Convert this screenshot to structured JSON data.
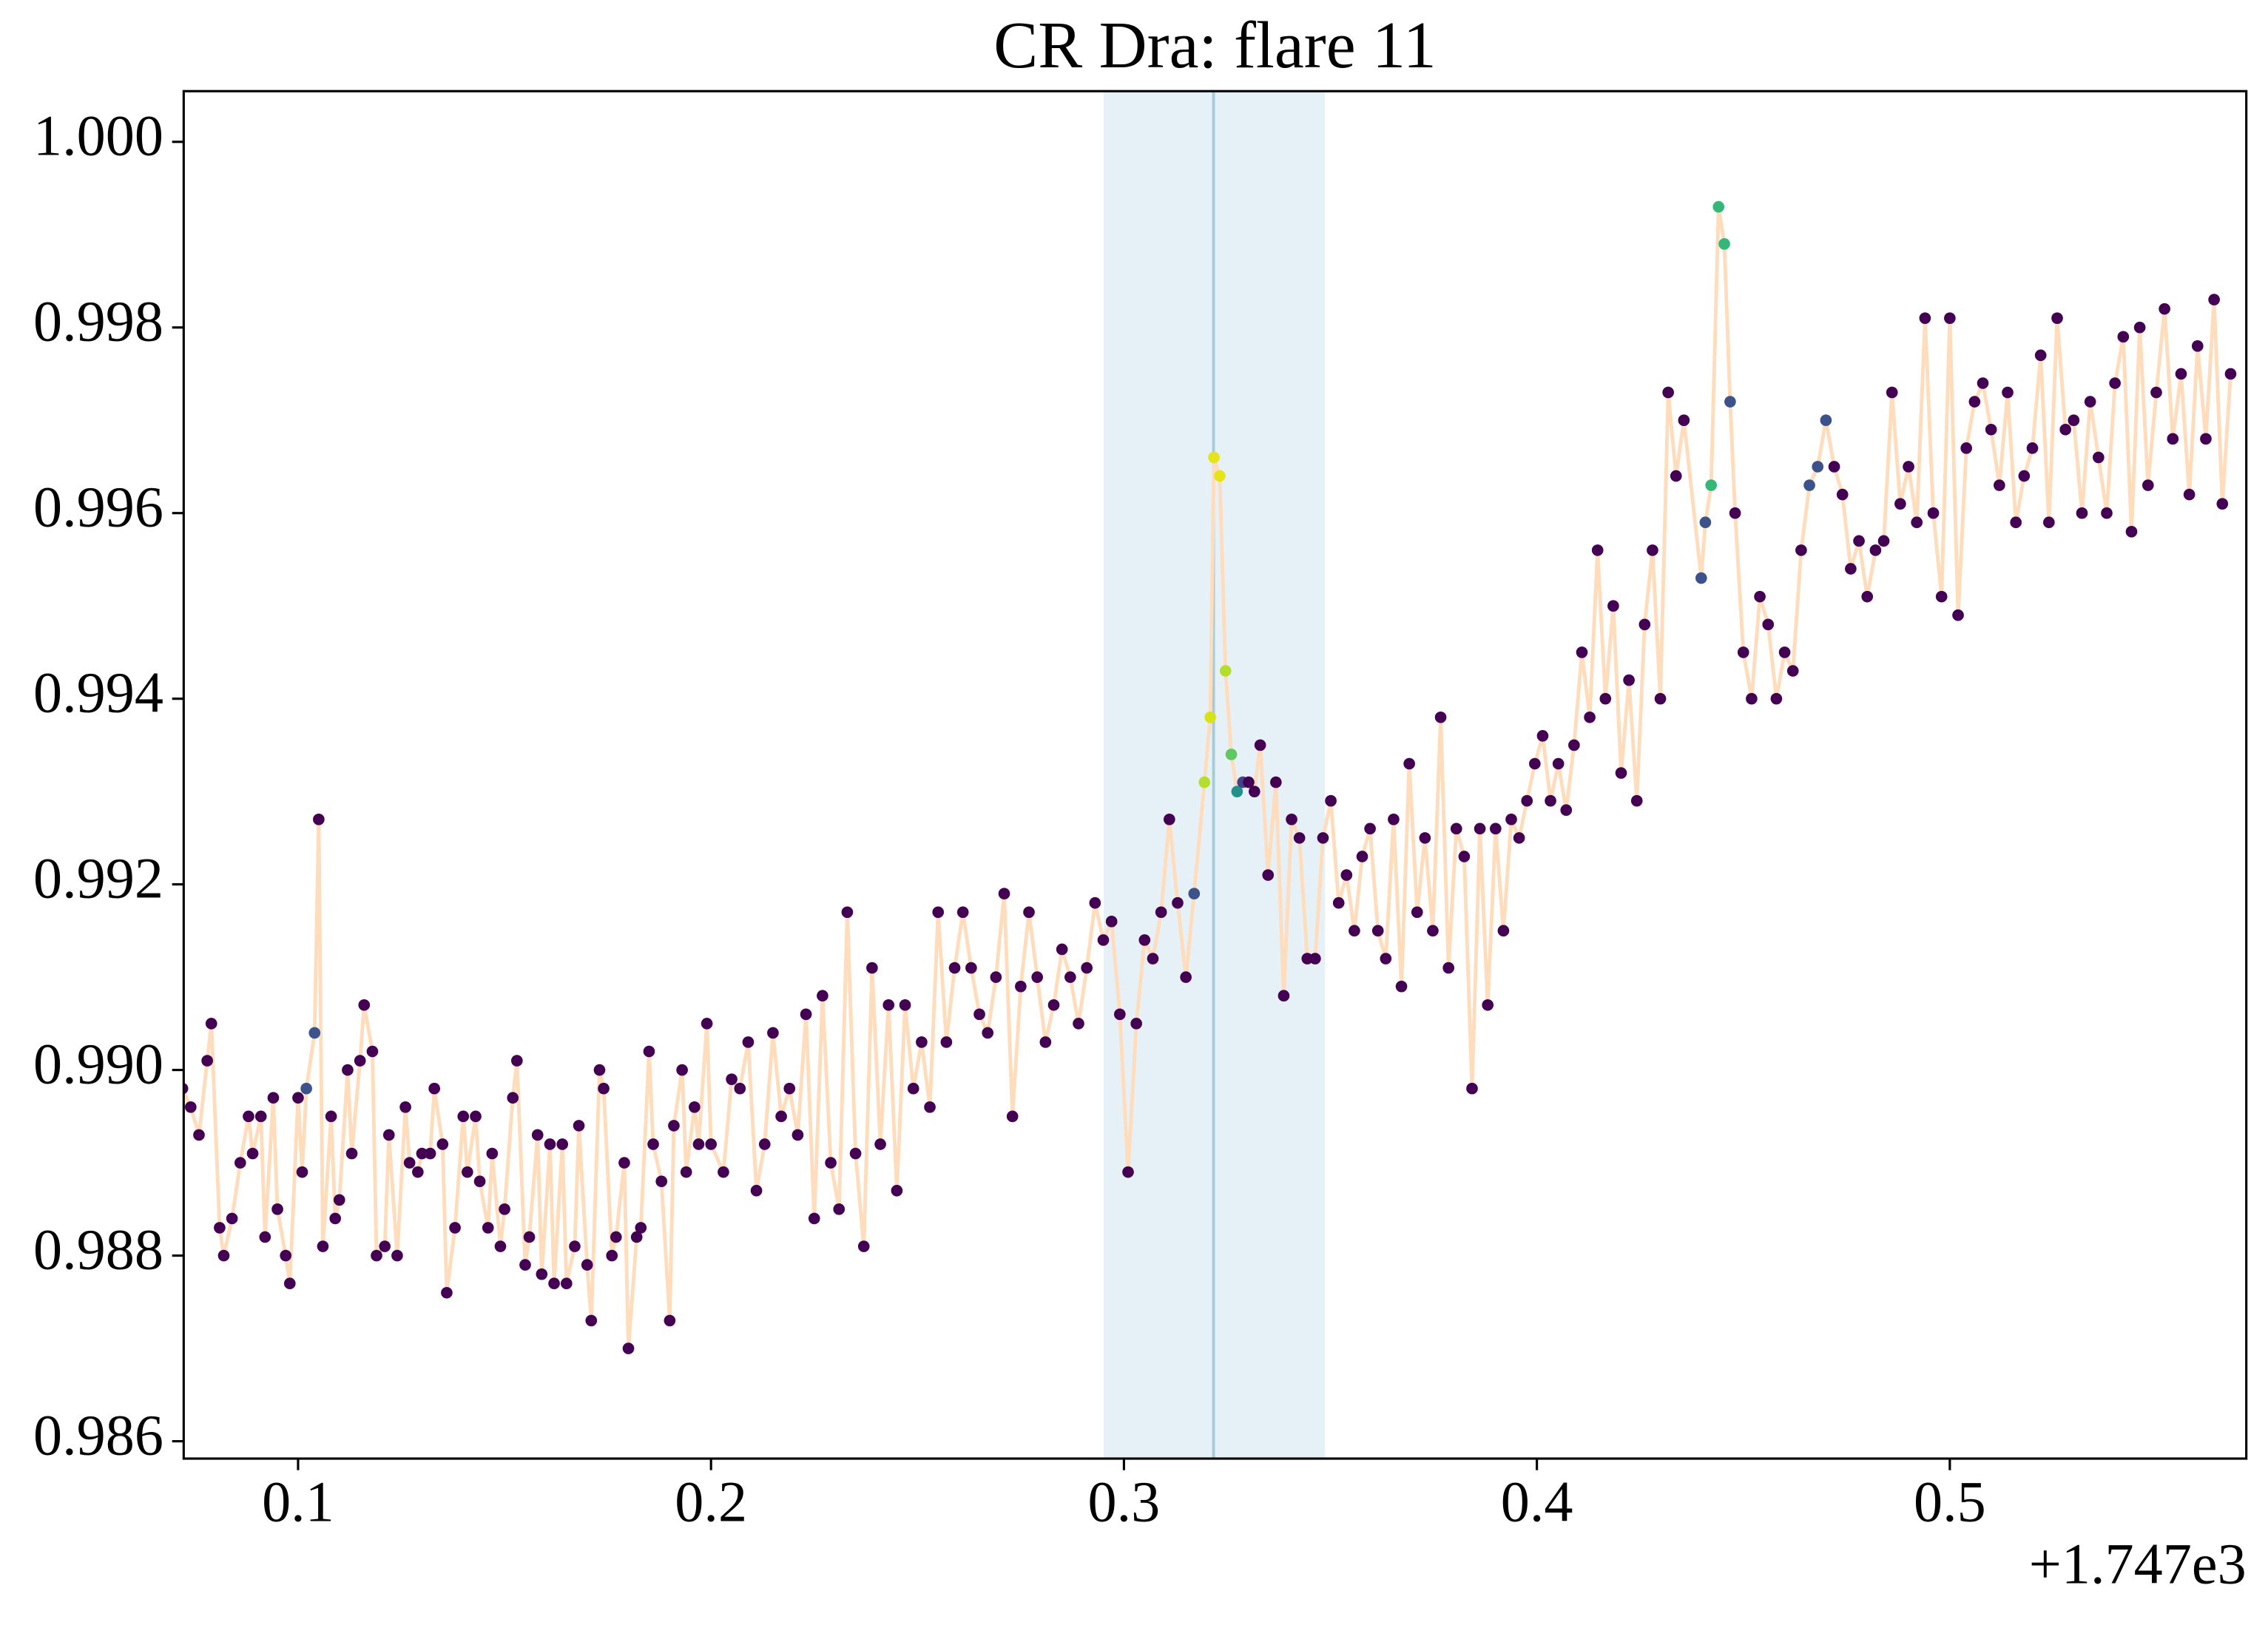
{
  "chart_data": {
    "type": "scatter-line",
    "title": "CR Dra: flare 11",
    "x_offset_label": "+1.747e3",
    "xlim": [
      0.0723,
      0.5718
    ],
    "ylim": [
      0.985813,
      1.000546
    ],
    "xticks": [
      0.1,
      0.2,
      0.3,
      0.4,
      0.5
    ],
    "yticks": [
      {
        "value": 0.986,
        "label": "0.986"
      },
      {
        "value": 0.988,
        "label": "0.988"
      },
      {
        "value": 0.99,
        "label": "0.990"
      },
      {
        "value": 0.992,
        "label": "0.992"
      },
      {
        "value": 0.994,
        "label": "0.994"
      },
      {
        "value": 0.996,
        "label": "0.996"
      },
      {
        "value": 0.998,
        "label": "0.998"
      },
      {
        "value": 1.0,
        "label": "1.000"
      }
    ],
    "line_color": "#fedcbc",
    "span": [
      0.2951,
      0.3487
    ],
    "span_color": "#e6f1f7",
    "vline": 0.3217,
    "vline_color": "#a6ccd8",
    "x": [
      0.072,
      0.074,
      0.076,
      0.078,
      0.079,
      0.081,
      0.082,
      0.084,
      0.086,
      0.088,
      0.089,
      0.091,
      0.092,
      0.094,
      0.095,
      0.097,
      0.098,
      0.1,
      0.101,
      0.102,
      0.104,
      0.105,
      0.106,
      0.108,
      0.109,
      0.11,
      0.112,
      0.113,
      0.115,
      0.116,
      0.118,
      0.119,
      0.121,
      0.122,
      0.124,
      0.126,
      0.127,
      0.129,
      0.13,
      0.132,
      0.133,
      0.135,
      0.136,
      0.138,
      0.14,
      0.141,
      0.143,
      0.144,
      0.146,
      0.147,
      0.149,
      0.15,
      0.152,
      0.153,
      0.155,
      0.156,
      0.158,
      0.159,
      0.161,
      0.162,
      0.164,
      0.165,
      0.167,
      0.168,
      0.17,
      0.171,
      0.173,
      0.174,
      0.176,
      0.177,
      0.179,
      0.18,
      0.182,
      0.183,
      0.185,
      0.186,
      0.188,
      0.19,
      0.191,
      0.193,
      0.194,
      0.196,
      0.197,
      0.199,
      0.2,
      0.203,
      0.205,
      0.207,
      0.209,
      0.211,
      0.213,
      0.215,
      0.217,
      0.219,
      0.221,
      0.223,
      0.225,
      0.227,
      0.229,
      0.231,
      0.233,
      0.235,
      0.237,
      0.239,
      0.241,
      0.243,
      0.245,
      0.247,
      0.249,
      0.251,
      0.253,
      0.255,
      0.257,
      0.259,
      0.261,
      0.263,
      0.265,
      0.267,
      0.269,
      0.271,
      0.273,
      0.275,
      0.277,
      0.279,
      0.281,
      0.283,
      0.285,
      0.287,
      0.289,
      0.291,
      0.293,
      0.295,
      0.297,
      0.299,
      0.301,
      0.303,
      0.305,
      0.307,
      0.309,
      0.311,
      0.313,
      0.315,
      0.317,
      0.3195,
      0.3209,
      0.3218,
      0.3232,
      0.3246,
      0.326,
      0.3274,
      0.3288,
      0.3302,
      0.3316,
      0.333,
      0.3349,
      0.3368,
      0.3387,
      0.3406,
      0.3425,
      0.3444,
      0.3463,
      0.3482,
      0.3501,
      0.352,
      0.3539,
      0.3558,
      0.3577,
      0.3596,
      0.3615,
      0.3634,
      0.3653,
      0.3672,
      0.3691,
      0.371,
      0.3729,
      0.3748,
      0.3767,
      0.3786,
      0.3805,
      0.3824,
      0.3843,
      0.3862,
      0.3881,
      0.39,
      0.3919,
      0.3938,
      0.3957,
      0.3976,
      0.3995,
      0.4014,
      0.4033,
      0.4052,
      0.4071,
      0.409,
      0.4109,
      0.4128,
      0.4147,
      0.4166,
      0.4185,
      0.4204,
      0.4223,
      0.4242,
      0.4261,
      0.428,
      0.4299,
      0.4318,
      0.4337,
      0.4356,
      0.4398,
      0.4408,
      0.4422,
      0.444,
      0.4454,
      0.4468,
      0.448,
      0.45,
      0.452,
      0.454,
      0.456,
      0.458,
      0.46,
      0.462,
      0.464,
      0.466,
      0.468,
      0.47,
      0.472,
      0.474,
      0.476,
      0.478,
      0.48,
      0.482,
      0.484,
      0.486,
      0.488,
      0.49,
      0.492,
      0.494,
      0.496,
      0.498,
      0.5,
      0.502,
      0.504,
      0.506,
      0.508,
      0.51,
      0.512,
      0.514,
      0.516,
      0.518,
      0.52,
      0.522,
      0.524,
      0.526,
      0.528,
      0.53,
      0.532,
      0.534,
      0.536,
      0.538,
      0.54,
      0.542,
      0.544,
      0.546,
      0.548,
      0.55,
      0.552,
      0.554,
      0.556,
      0.558,
      0.56,
      0.562,
      0.564,
      0.566,
      0.568
    ],
    "values": [
      0.9898,
      0.9896,
      0.9893,
      0.9901,
      0.9905,
      0.9883,
      0.988,
      0.9884,
      0.989,
      0.9895,
      0.9891,
      0.9895,
      0.9882,
      0.9897,
      0.9885,
      0.988,
      0.9877,
      0.9897,
      0.9889,
      0.9898,
      0.9904,
      0.9927,
      0.9881,
      0.9895,
      0.9884,
      0.9886,
      0.99,
      0.9891,
      0.9901,
      0.9907,
      0.9902,
      0.988,
      0.9881,
      0.9893,
      0.988,
      0.9896,
      0.989,
      0.9889,
      0.9891,
      0.9891,
      0.9898,
      0.9892,
      0.9876,
      0.9883,
      0.9895,
      0.9889,
      0.9895,
      0.9888,
      0.9883,
      0.9891,
      0.9881,
      0.9885,
      0.9897,
      0.9901,
      0.9879,
      0.9882,
      0.9893,
      0.9878,
      0.9892,
      0.9877,
      0.9892,
      0.9877,
      0.9881,
      0.9894,
      0.9879,
      0.9873,
      0.99,
      0.9898,
      0.988,
      0.9882,
      0.989,
      0.987,
      0.9882,
      0.9883,
      0.9902,
      0.9892,
      0.9888,
      0.9873,
      0.9894,
      0.99,
      0.9889,
      0.9896,
      0.9892,
      0.9905,
      0.9892,
      0.9889,
      0.9899,
      0.9898,
      0.9903,
      0.9887,
      0.9892,
      0.9904,
      0.9895,
      0.9898,
      0.9893,
      0.9906,
      0.9884,
      0.9908,
      0.989,
      0.9885,
      0.9917,
      0.9891,
      0.9881,
      0.9911,
      0.9892,
      0.9907,
      0.9887,
      0.9907,
      0.9898,
      0.9903,
      0.9896,
      0.9917,
      0.9903,
      0.9911,
      0.9917,
      0.9911,
      0.9906,
      0.9904,
      0.991,
      0.9919,
      0.9895,
      0.9909,
      0.9917,
      0.991,
      0.9903,
      0.9907,
      0.9913,
      0.991,
      0.9905,
      0.9911,
      0.9918,
      0.9914,
      0.9916,
      0.9906,
      0.9889,
      0.9905,
      0.9914,
      0.9912,
      0.9917,
      0.9927,
      0.9918,
      0.991,
      0.9919,
      0.9931,
      0.9938,
      0.9966,
      0.9964,
      0.9943,
      0.9934,
      0.993,
      0.9931,
      0.9931,
      0.993,
      0.9935,
      0.9921,
      0.9931,
      0.9908,
      0.9927,
      0.9925,
      0.9912,
      0.9912,
      0.9925,
      0.9929,
      0.9918,
      0.9921,
      0.9915,
      0.9923,
      0.9926,
      0.9915,
      0.9912,
      0.9927,
      0.9909,
      0.9933,
      0.9917,
      0.9925,
      0.9915,
      0.9938,
      0.9911,
      0.9926,
      0.9923,
      0.9898,
      0.9926,
      0.9907,
      0.9926,
      0.9915,
      0.9927,
      0.9925,
      0.9929,
      0.9933,
      0.9936,
      0.9929,
      0.9933,
      0.9928,
      0.9935,
      0.9945,
      0.9938,
      0.9956,
      0.994,
      0.995,
      0.9932,
      0.9942,
      0.9929,
      0.9948,
      0.9956,
      0.994,
      0.9973,
      0.9964,
      0.997,
      0.9953,
      0.9959,
      0.9963,
      0.9993,
      0.9989,
      0.9972,
      0.996,
      0.9945,
      0.994,
      0.9951,
      0.9948,
      0.994,
      0.9945,
      0.9943,
      0.9956,
      0.9963,
      0.9965,
      0.997,
      0.9965,
      0.9962,
      0.9954,
      0.9957,
      0.9951,
      0.9956,
      0.9957,
      0.9973,
      0.9961,
      0.9965,
      0.9959,
      0.9981,
      0.996,
      0.9951,
      0.9981,
      0.9949,
      0.9967,
      0.9972,
      0.9974,
      0.9969,
      0.9963,
      0.9973,
      0.9959,
      0.9964,
      0.9967,
      0.9977,
      0.9959,
      0.9981,
      0.9969,
      0.997,
      0.996,
      0.9972,
      0.9966,
      0.996,
      0.9974,
      0.9979,
      0.9958,
      0.998,
      0.9963,
      0.9973,
      0.9982,
      0.9968,
      0.9975,
      0.9962,
      0.9978,
      0.9968,
      0.9983,
      0.9961,
      0.9975
    ],
    "colors": [
      "#440154",
      "#440154",
      "#440154",
      "#440154",
      "#440154",
      "#440154",
      "#440154",
      "#440154",
      "#440154",
      "#440154",
      "#440154",
      "#440154",
      "#440154",
      "#440154",
      "#440154",
      "#440154",
      "#440154",
      "#440154",
      "#440154",
      "#3b528b",
      "#3b528b",
      "#440154",
      "#440154",
      "#440154",
      "#440154",
      "#440154",
      "#440154",
      "#440154",
      "#440154",
      "#440154",
      "#440154",
      "#440154",
      "#440154",
      "#440154",
      "#440154",
      "#440154",
      "#440154",
      "#440154",
      "#440154",
      "#440154",
      "#440154",
      "#440154",
      "#440154",
      "#440154",
      "#440154",
      "#440154",
      "#440154",
      "#440154",
      "#440154",
      "#440154",
      "#440154",
      "#440154",
      "#440154",
      "#440154",
      "#440154",
      "#440154",
      "#440154",
      "#440154",
      "#440154",
      "#440154",
      "#440154",
      "#440154",
      "#440154",
      "#440154",
      "#440154",
      "#440154",
      "#440154",
      "#440154",
      "#440154",
      "#440154",
      "#440154",
      "#440154",
      "#440154",
      "#440154",
      "#440154",
      "#440154",
      "#440154",
      "#440154",
      "#440154",
      "#440154",
      "#440154",
      "#440154",
      "#440154",
      "#440154",
      "#440154",
      "#440154",
      "#440154",
      "#440154",
      "#440154",
      "#440154",
      "#440154",
      "#440154",
      "#440154",
      "#440154",
      "#440154",
      "#440154",
      "#440154",
      "#440154",
      "#440154",
      "#440154",
      "#440154",
      "#440154",
      "#440154",
      "#440154",
      "#440154",
      "#440154",
      "#440154",
      "#440154",
      "#440154",
      "#440154",
      "#440154",
      "#440154",
      "#440154",
      "#440154",
      "#440154",
      "#440154",
      "#440154",
      "#440154",
      "#440154",
      "#440154",
      "#440154",
      "#440154",
      "#440154",
      "#440154",
      "#440154",
      "#440154",
      "#440154",
      "#440154",
      "#440154",
      "#440154",
      "#440154",
      "#440154",
      "#440154",
      "#440154",
      "#440154",
      "#440154",
      "#440154",
      "#440154",
      "#440154",
      "#440154",
      "#440154",
      "#440154",
      "#3b528b",
      "#b5de2b",
      "#d8e219",
      "#e5e419",
      "#e5e419",
      "#b5de2b",
      "#5ec962",
      "#21918c",
      "#414487",
      "#440154",
      "#440154",
      "#440154",
      "#440154",
      "#440154",
      "#440154",
      "#440154",
      "#440154",
      "#440154",
      "#440154",
      "#440154",
      "#440154",
      "#440154",
      "#440154",
      "#440154",
      "#440154",
      "#440154",
      "#440154",
      "#440154",
      "#440154",
      "#440154",
      "#440154",
      "#440154",
      "#440154",
      "#440154",
      "#440154",
      "#440154",
      "#440154",
      "#440154",
      "#440154",
      "#440154",
      "#440154",
      "#440154",
      "#440154",
      "#440154",
      "#440154",
      "#440154",
      "#440154",
      "#440154",
      "#440154",
      "#440154",
      "#440154",
      "#440154",
      "#440154",
      "#440154",
      "#440154",
      "#440154",
      "#440154",
      "#440154",
      "#440154",
      "#440154",
      "#440154",
      "#440154",
      "#440154",
      "#440154",
      "#440154",
      "#440154",
      "#3b528b",
      "#3b528b",
      "#35b779",
      "#35b779",
      "#35b779",
      "#3b528b",
      "#440154",
      "#440154",
      "#440154",
      "#440154",
      "#440154",
      "#440154",
      "#440154",
      "#440154",
      "#440154",
      "#3b528b",
      "#3b528b",
      "#3b528b",
      "#440154",
      "#440154",
      "#440154",
      "#440154",
      "#440154",
      "#440154",
      "#440154",
      "#440154",
      "#440154",
      "#440154",
      "#440154",
      "#440154",
      "#440154",
      "#440154",
      "#440154",
      "#440154",
      "#440154",
      "#440154",
      "#440154",
      "#440154",
      "#440154",
      "#440154",
      "#440154",
      "#440154",
      "#440154",
      "#440154",
      "#440154",
      "#440154",
      "#440154",
      "#440154",
      "#440154",
      "#440154",
      "#440154",
      "#440154",
      "#440154",
      "#440154",
      "#440154",
      "#440154",
      "#440154",
      "#440154",
      "#440154",
      "#440154",
      "#440154",
      "#440154",
      "#440154",
      "#440154",
      "#440154",
      "#440154",
      "#440154"
    ]
  }
}
